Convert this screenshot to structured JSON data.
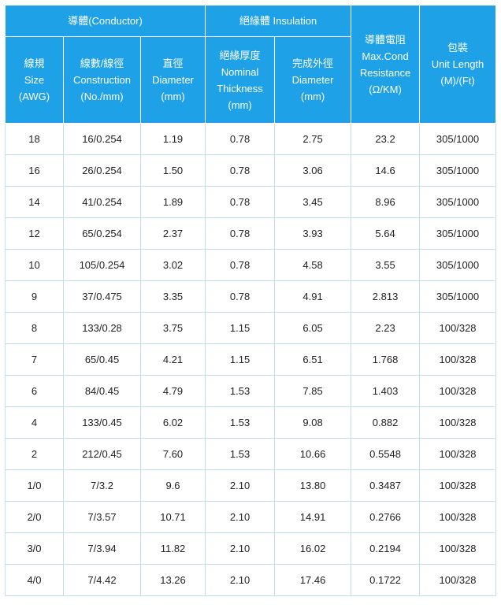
{
  "headers": {
    "conductor_group": "導體(Conductor)",
    "insulation_group": "絕緣體 Insulation",
    "resistance": [
      "導體電阻",
      "Max.Cond",
      "Resistance",
      "(Ω/KM)"
    ],
    "packing": [
      "包裝",
      "Unit Length",
      "(M)/(Ft)"
    ],
    "size": [
      "線規",
      "Size",
      "(AWG)"
    ],
    "construction": [
      "線數/線徑",
      "Construction",
      "(No./mm)"
    ],
    "cond_diameter": [
      "直徑",
      "Diameter",
      "(mm)"
    ],
    "thickness": [
      "絕緣厚度",
      "Nominal",
      "Thickness",
      "(mm)"
    ],
    "outer_diameter": [
      "完成外徑",
      "Diameter",
      "(mm)"
    ]
  },
  "rows": [
    [
      "18",
      "16/0.254",
      "1.19",
      "0.78",
      "2.75",
      "23.2",
      "305/1000"
    ],
    [
      "16",
      "26/0.254",
      "1.50",
      "0.78",
      "3.06",
      "14.6",
      "305/1000"
    ],
    [
      "14",
      "41/0.254",
      "1.89",
      "0.78",
      "3.45",
      "8.96",
      "305/1000"
    ],
    [
      "12",
      "65/0.254",
      "2.37",
      "0.78",
      "3.93",
      "5.64",
      "305/1000"
    ],
    [
      "10",
      "105/0.254",
      "3.02",
      "0.78",
      "4.58",
      "3.55",
      "305/1000"
    ],
    [
      "9",
      "37/0.475",
      "3.35",
      "0.78",
      "4.91",
      "2.813",
      "305/1000"
    ],
    [
      "8",
      "133/0.28",
      "3.75",
      "1.15",
      "6.05",
      "2.23",
      "100/328"
    ],
    [
      "7",
      "65/0.45",
      "4.21",
      "1.15",
      "6.51",
      "1.768",
      "100/328"
    ],
    [
      "6",
      "84/0.45",
      "4.79",
      "1.53",
      "7.85",
      "1.403",
      "100/328"
    ],
    [
      "4",
      "133/0.45",
      "6.02",
      "1.53",
      "9.08",
      "0.882",
      "100/328"
    ],
    [
      "2",
      "212/0.45",
      "7.60",
      "1.53",
      "10.66",
      "0.5548",
      "100/328"
    ],
    [
      "1/0",
      "7/3.2",
      "9.6",
      "2.10",
      "13.80",
      "0.3487",
      "100/328"
    ],
    [
      "2/0",
      "7/3.57",
      "10.71",
      "2.10",
      "14.91",
      "0.2766",
      "100/328"
    ],
    [
      "3/0",
      "7/3.94",
      "11.82",
      "2.10",
      "16.02",
      "0.2194",
      "100/328"
    ],
    [
      "4/0",
      "7/4.42",
      "13.26",
      "2.10",
      "17.46",
      "0.1722",
      "100/328"
    ]
  ]
}
